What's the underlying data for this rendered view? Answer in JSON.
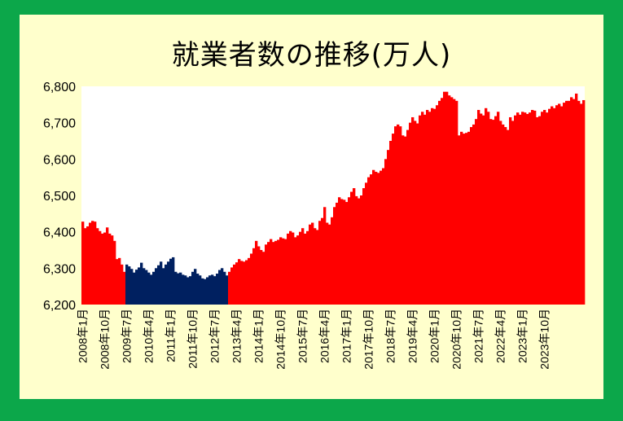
{
  "title": "就業者数の推移(万人)",
  "chart_data": {
    "type": "bar",
    "title": "就業者数の推移(万人)",
    "xlabel": "",
    "ylabel": "",
    "ylim": [
      6200,
      6800
    ],
    "yticks": [
      6200,
      6300,
      6400,
      6500,
      6600,
      6700,
      6800
    ],
    "ytick_labels": [
      "6,200",
      "6,300",
      "6,400",
      "6,500",
      "6,600",
      "6,700",
      "6,800"
    ],
    "start_month": "2008年1月",
    "xtick_labels": [
      "2008年1月",
      "2008年10月",
      "2009年7月",
      "2010年4月",
      "2011年1月",
      "2011年10月",
      "2012年7月",
      "2013年4月",
      "2014年1月",
      "2014年10月",
      "2015年7月",
      "2016年4月",
      "2017年1月",
      "2017年10月",
      "2018年7月",
      "2019年4月",
      "2020年1月",
      "2020年10月",
      "2021年7月",
      "2022年4月",
      "2023年1月",
      "2023年10月"
    ],
    "colors": {
      "default": "#ff0000",
      "highlight": "#002060",
      "plot_bg": "#ffffff"
    },
    "highlight_range": [
      "2009年7月",
      "2012年12月"
    ],
    "values": [
      6428,
      6410,
      6415,
      6425,
      6430,
      6428,
      6410,
      6402,
      6395,
      6398,
      6412,
      6395,
      6390,
      6375,
      6325,
      6328,
      6310,
      6290,
      6310,
      6305,
      6298,
      6288,
      6296,
      6302,
      6315,
      6300,
      6295,
      6288,
      6282,
      6290,
      6300,
      6308,
      6318,
      6300,
      6310,
      6318,
      6326,
      6330,
      6290,
      6286,
      6288,
      6282,
      6280,
      6275,
      6278,
      6290,
      6298,
      6285,
      6280,
      6272,
      6270,
      6275,
      6280,
      6282,
      6278,
      6285,
      6295,
      6300,
      6290,
      6280,
      6290,
      6302,
      6310,
      6316,
      6325,
      6320,
      6318,
      6322,
      6328,
      6340,
      6355,
      6375,
      6360,
      6350,
      6345,
      6365,
      6372,
      6380,
      6372,
      6375,
      6378,
      6385,
      6382,
      6380,
      6395,
      6402,
      6398,
      6385,
      6390,
      6400,
      6410,
      6395,
      6402,
      6420,
      6425,
      6410,
      6405,
      6430,
      6438,
      6468,
      6425,
      6420,
      6440,
      6468,
      6480,
      6495,
      6490,
      6488,
      6482,
      6495,
      6510,
      6520,
      6498,
      6492,
      6500,
      6520,
      6535,
      6550,
      6558,
      6570,
      6565,
      6562,
      6568,
      6575,
      6600,
      6625,
      6650,
      6670,
      6690,
      6695,
      6690,
      6665,
      6662,
      6680,
      6700,
      6715,
      6705,
      6698,
      6720,
      6730,
      6722,
      6735,
      6730,
      6740,
      6738,
      6748,
      6760,
      6768,
      6785,
      6785,
      6775,
      6770,
      6765,
      6760,
      6665,
      6675,
      6670,
      6672,
      6675,
      6688,
      6695,
      6710,
      6735,
      6725,
      6720,
      6740,
      6730,
      6710,
      6708,
      6718,
      6730,
      6705,
      6695,
      6688,
      6680,
      6715,
      6705,
      6720,
      6728,
      6722,
      6730,
      6728,
      6724,
      6728,
      6735,
      6733,
      6715,
      6718,
      6730,
      6735,
      6728,
      6738,
      6745,
      6740,
      6748,
      6752,
      6745,
      6755,
      6760,
      6760,
      6770,
      6765,
      6780,
      6760,
      6752,
      6762
    ]
  }
}
